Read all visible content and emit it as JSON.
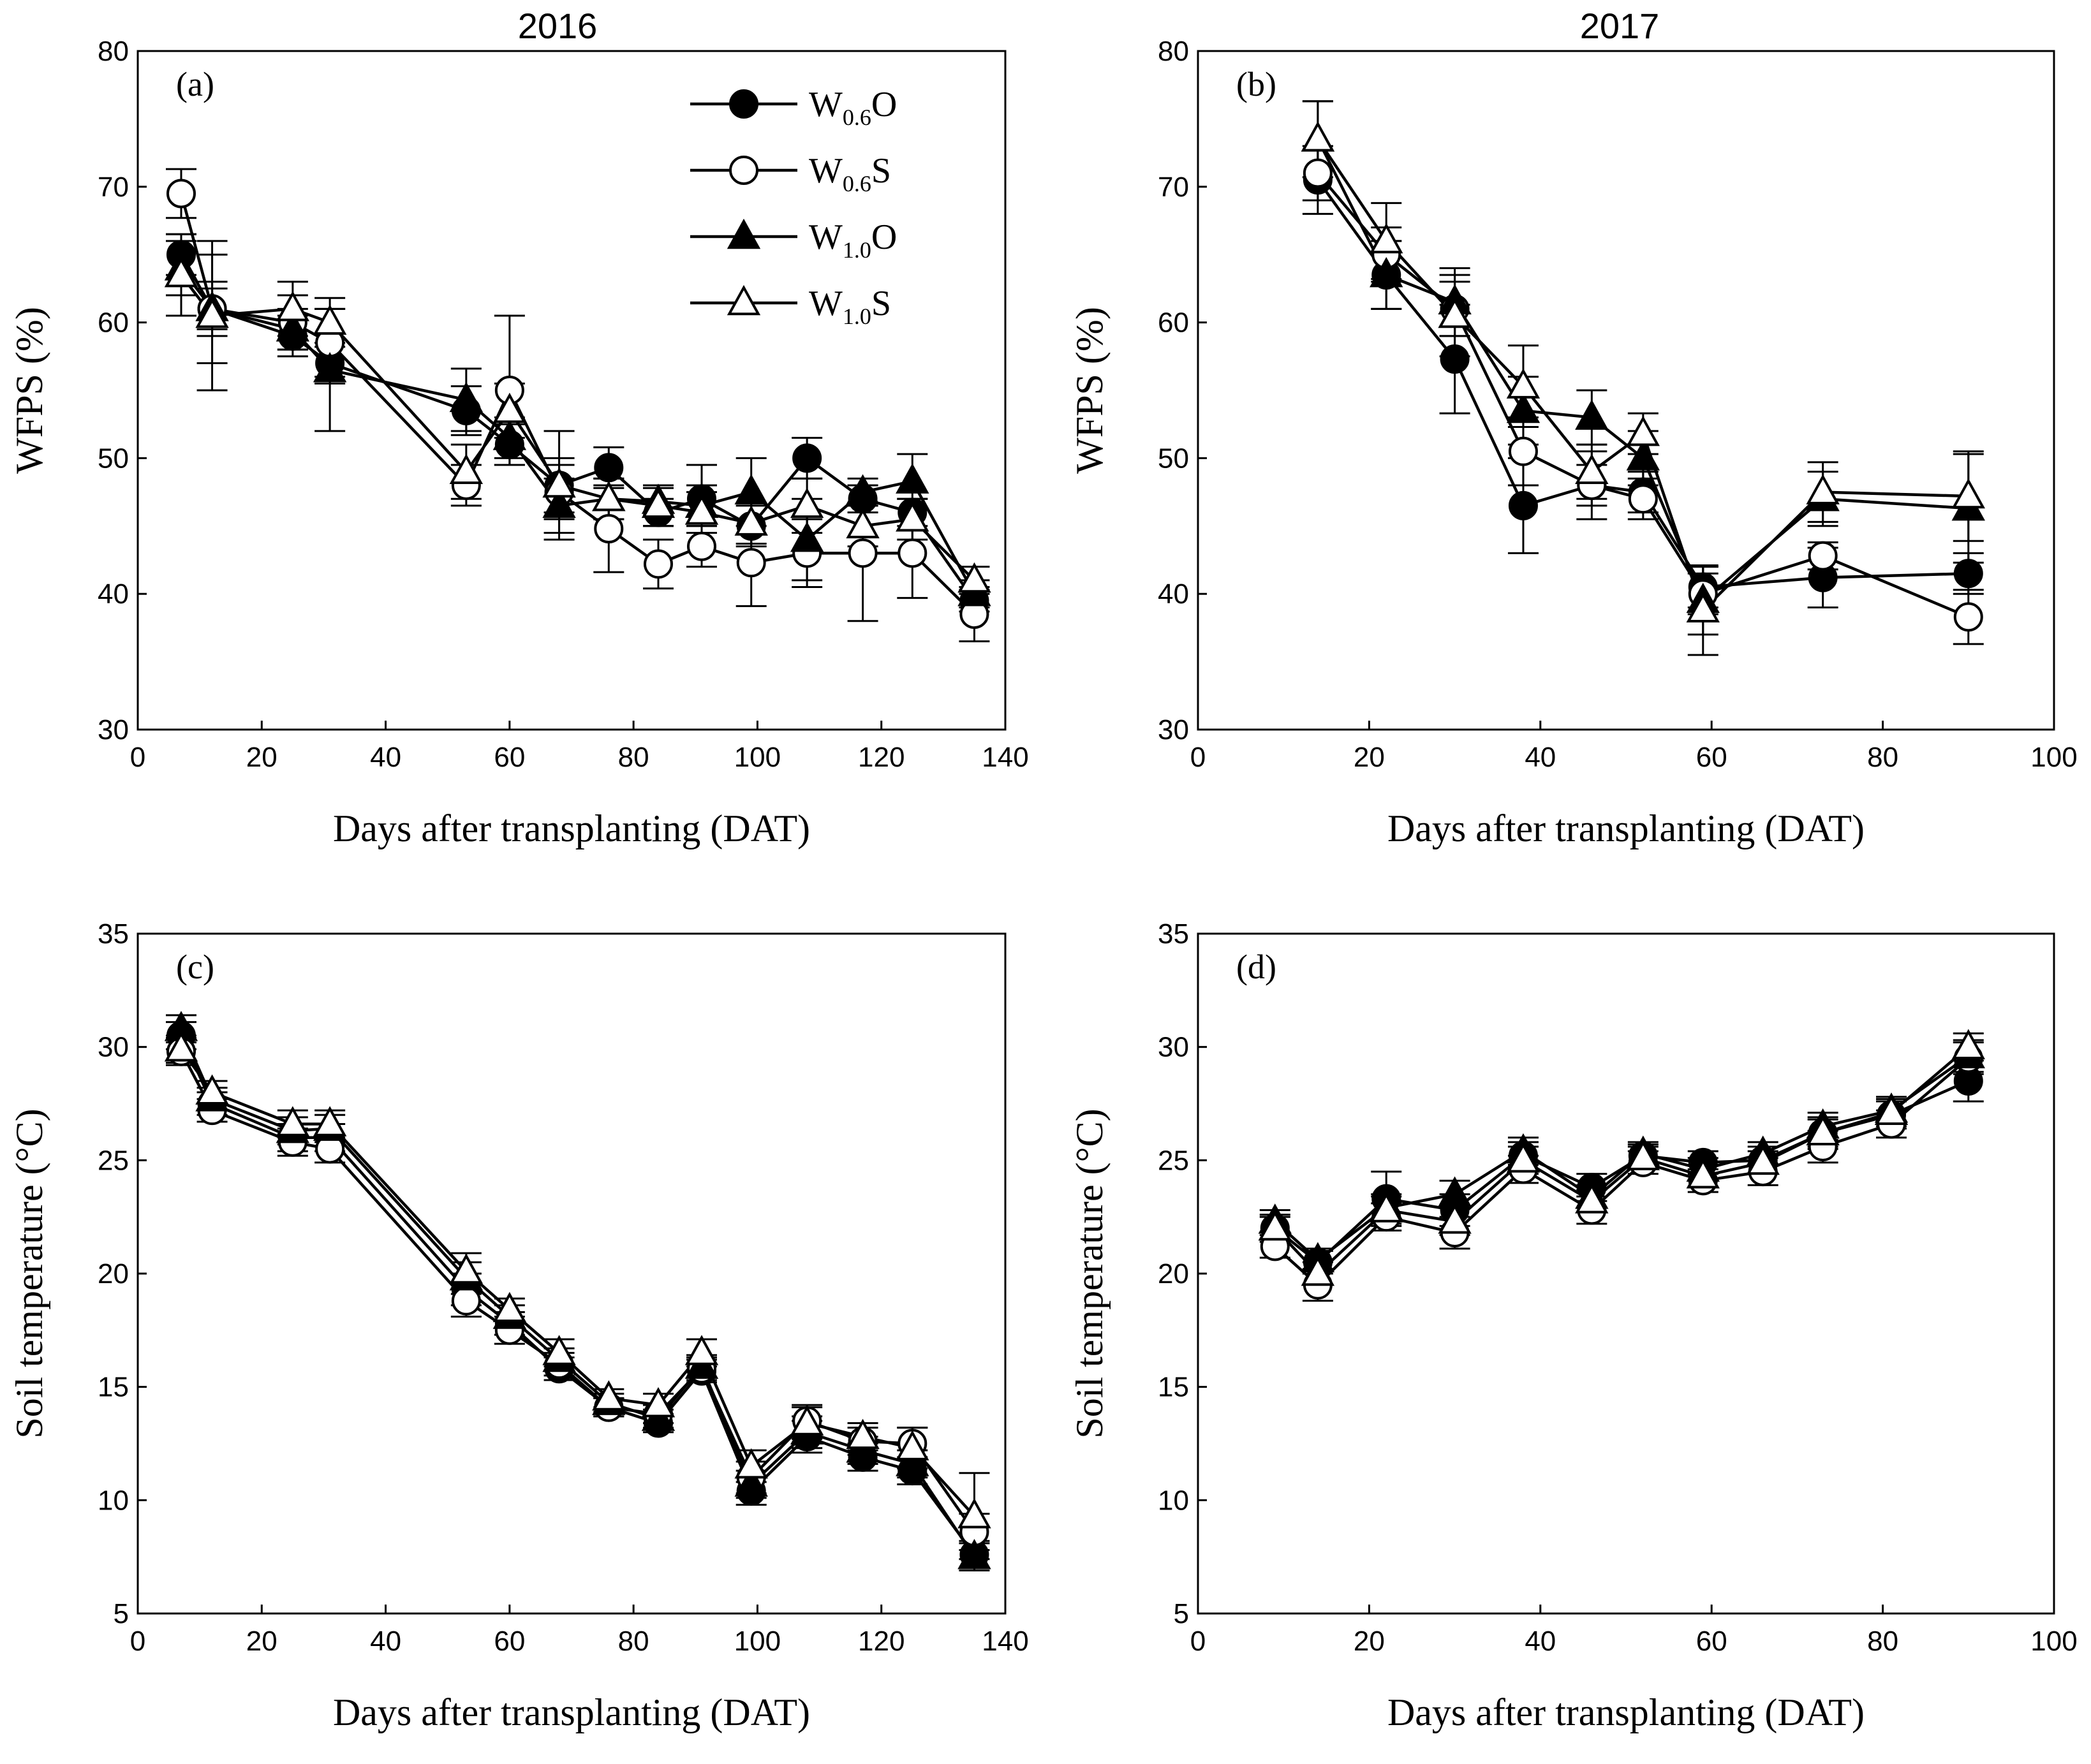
{
  "figure": {
    "year_titles": [
      "2016",
      "2017"
    ]
  },
  "legend": [
    {
      "base": "W",
      "sub": "0.6",
      "suffix": "O",
      "series": "W0.6O",
      "marker": "circle",
      "fill": "#000000"
    },
    {
      "base": "W",
      "sub": "0.6",
      "suffix": "S",
      "series": "W0.6S",
      "marker": "circle",
      "fill": "#ffffff"
    },
    {
      "base": "W",
      "sub": "1.0",
      "suffix": "O",
      "series": "W1.0O",
      "marker": "triangle",
      "fill": "#000000"
    },
    {
      "base": "W",
      "sub": "1.0",
      "suffix": "S",
      "series": "W1.0S",
      "marker": "triangle",
      "fill": "#ffffff"
    }
  ],
  "chart_data": [
    {
      "panel": "(a)",
      "type": "line",
      "title": "2016",
      "xlabel": "Days after transplanting (DAT)",
      "ylabel": "WFPS (%)",
      "xlim": [
        0,
        140
      ],
      "ylim": [
        30,
        80
      ],
      "xticks": [
        0,
        20,
        40,
        60,
        80,
        100,
        120,
        140
      ],
      "yticks": [
        30,
        40,
        50,
        60,
        70,
        80
      ],
      "legend": true,
      "series": [
        {
          "name": "W0.6O",
          "x": [
            7,
            12,
            25,
            31,
            53,
            60,
            68,
            76,
            84,
            91,
            99,
            108,
            117,
            125,
            135
          ],
          "y": [
            65,
            61,
            59,
            57,
            53.5,
            51,
            48,
            49.3,
            46,
            47,
            45,
            50,
            47,
            46,
            39.5
          ],
          "err": [
            1.5,
            4,
            1.5,
            1.5,
            1.8,
            1.5,
            2,
            1.5,
            1,
            2.5,
            1.5,
            1.5,
            1,
            1,
            0.8
          ]
        },
        {
          "name": "W0.6S",
          "x": [
            7,
            12,
            25,
            31,
            53,
            60,
            68,
            76,
            84,
            91,
            99,
            108,
            117,
            125,
            135
          ],
          "y": [
            69.5,
            61,
            60,
            58.5,
            48,
            55,
            47.5,
            44.8,
            42.2,
            43.5,
            42.3,
            43,
            43,
            43,
            38.5
          ],
          "err": [
            1.8,
            2,
            2,
            2.5,
            1.5,
            5.5,
            2,
            3.2,
            1.8,
            1.5,
            3.2,
            2.5,
            5,
            3.3,
            2
          ]
        },
        {
          "name": "W1.0O",
          "x": [
            7,
            12,
            25,
            31,
            53,
            60,
            68,
            76,
            84,
            91,
            99,
            108,
            117,
            125,
            135
          ],
          "y": [
            64,
            61,
            59.5,
            56.5,
            54.3,
            51.5,
            46.5,
            47,
            46.8,
            46.5,
            47.5,
            44,
            47.5,
            48.3,
            40
          ],
          "err": [
            2,
            1.5,
            1.5,
            4.5,
            2.3,
            1.5,
            2,
            1.5,
            1,
            1.5,
            2.5,
            3,
            1,
            2,
            1
          ]
        },
        {
          "name": "W1.0S",
          "x": [
            7,
            12,
            25,
            31,
            53,
            60,
            68,
            76,
            84,
            91,
            99,
            108,
            117,
            125,
            135
          ],
          "y": [
            63.5,
            60.5,
            61,
            60,
            49,
            53.5,
            48,
            47,
            46.5,
            46,
            45.2,
            46.5,
            45,
            45.5,
            41
          ],
          "err": [
            3,
            5.5,
            2,
            1.8,
            2,
            2,
            4,
            1.5,
            1.5,
            1.5,
            1.5,
            2,
            1.5,
            1.5,
            1
          ]
        }
      ]
    },
    {
      "panel": "(b)",
      "type": "line",
      "title": "2017",
      "xlabel": "Days after transplanting (DAT)",
      "ylabel": "WFPS (%)",
      "xlim": [
        0,
        100
      ],
      "ylim": [
        30,
        80
      ],
      "xticks": [
        0,
        20,
        40,
        60,
        80,
        100
      ],
      "yticks": [
        30,
        40,
        50,
        60,
        70,
        80
      ],
      "legend": false,
      "series": [
        {
          "name": "W0.6O",
          "x": [
            14,
            22,
            30,
            38,
            46,
            52,
            59,
            73,
            90
          ],
          "y": [
            70.5,
            63.5,
            57.3,
            46.5,
            48,
            47.5,
            40.5,
            41.2,
            41.5
          ],
          "err": [
            2.5,
            2.5,
            4,
            3.5,
            1.5,
            1.5,
            1.5,
            2.2,
            1.5
          ]
        },
        {
          "name": "W0.6S",
          "x": [
            14,
            22,
            30,
            38,
            46,
            52,
            59,
            73,
            90
          ],
          "y": [
            71,
            65,
            61,
            50.5,
            48,
            47,
            40,
            42.8,
            38.3
          ],
          "err": [
            2,
            2,
            2,
            2.5,
            2.5,
            1.5,
            1.5,
            1,
            2
          ]
        },
        {
          "name": "W1.0O",
          "x": [
            14,
            22,
            30,
            38,
            46,
            52,
            59,
            73,
            90
          ],
          "y": [
            73.5,
            63.5,
            61.5,
            53.5,
            53,
            50,
            39.5,
            47,
            46.3
          ],
          "err": [
            2.8,
            2.5,
            2.5,
            2.5,
            2,
            2,
            2.5,
            2,
            4
          ]
        },
        {
          "name": "W1.0S",
          "x": [
            14,
            22,
            30,
            38,
            46,
            52,
            59,
            73,
            90
          ],
          "y": [
            73.5,
            66,
            60.5,
            55.3,
            49,
            51.8,
            38.8,
            47.5,
            47.2
          ],
          "err": [
            2.8,
            2.8,
            3,
            3,
            2,
            1.5,
            3.3,
            2.2,
            3.3
          ]
        }
      ]
    },
    {
      "panel": "(c)",
      "type": "line",
      "title": "",
      "xlabel": "Days after transplanting (DAT)",
      "ylabel": "Soil temperature (°C)",
      "xlim": [
        0,
        140
      ],
      "ylim": [
        5,
        35
      ],
      "xticks": [
        0,
        20,
        40,
        60,
        80,
        100,
        120,
        140
      ],
      "yticks": [
        5,
        10,
        15,
        20,
        25,
        30,
        35
      ],
      "legend": false,
      "series": [
        {
          "name": "W0.6O",
          "x": [
            7,
            12,
            25,
            31,
            53,
            60,
            68,
            76,
            84,
            91,
            99,
            108,
            117,
            125,
            135
          ],
          "y": [
            30.5,
            27.5,
            26,
            26,
            19.3,
            17.8,
            15.8,
            14.1,
            13.4,
            15.7,
            10.4,
            12.8,
            11.9,
            11.3,
            7.6
          ],
          "err": [
            0.6,
            0.5,
            0.6,
            0.6,
            0.7,
            0.5,
            0.5,
            0.4,
            0.4,
            0.5,
            0.6,
            0.7,
            0.6,
            0.6,
            0.6
          ]
        },
        {
          "name": "W0.6S",
          "x": [
            7,
            12,
            25,
            31,
            53,
            60,
            68,
            76,
            84,
            91,
            99,
            108,
            117,
            125,
            135
          ],
          "y": [
            29.8,
            27.2,
            25.8,
            25.5,
            18.8,
            17.5,
            16,
            14.1,
            13.8,
            15.8,
            11,
            13.5,
            12.6,
            12.5,
            8.6
          ],
          "err": [
            0.6,
            0.5,
            0.6,
            0.6,
            0.7,
            0.6,
            0.5,
            0.4,
            0.4,
            0.5,
            0.7,
            0.7,
            0.6,
            0.7,
            0.8
          ]
        },
        {
          "name": "W1.0O",
          "x": [
            7,
            12,
            25,
            31,
            53,
            60,
            68,
            76,
            84,
            91,
            99,
            108,
            117,
            125,
            135
          ],
          "y": [
            30.8,
            27.7,
            26.3,
            26.4,
            19.8,
            18.1,
            16.2,
            14.3,
            13.6,
            15.9,
            10.7,
            13,
            12.2,
            11.6,
            7.5
          ],
          "err": [
            0.6,
            0.5,
            0.6,
            0.6,
            0.7,
            0.5,
            0.5,
            0.4,
            0.4,
            0.5,
            0.6,
            0.7,
            0.6,
            0.6,
            0.6
          ]
        },
        {
          "name": "W1.0S",
          "x": [
            7,
            12,
            25,
            31,
            53,
            60,
            68,
            76,
            84,
            91,
            99,
            108,
            117,
            125,
            135
          ],
          "y": [
            29.9,
            28,
            26.6,
            26.6,
            20.1,
            18.4,
            16.5,
            14.5,
            14.2,
            16.5,
            11.5,
            13.4,
            12.8,
            12.3,
            9.3
          ],
          "err": [
            0.6,
            0.5,
            0.6,
            0.6,
            0.8,
            0.5,
            0.6,
            0.4,
            0.5,
            0.6,
            0.7,
            0.7,
            0.6,
            0.9,
            1.9
          ]
        }
      ]
    },
    {
      "panel": "(d)",
      "type": "line",
      "title": "",
      "xlabel": "Days after transplanting (DAT)",
      "ylabel": "Soil temperature (°C)",
      "xlim": [
        0,
        100
      ],
      "ylim": [
        5,
        35
      ],
      "xticks": [
        0,
        20,
        40,
        60,
        80,
        100
      ],
      "yticks": [
        5,
        10,
        15,
        20,
        25,
        30,
        35
      ],
      "legend": false,
      "series": [
        {
          "name": "W0.6O",
          "x": [
            9,
            14,
            22,
            30,
            38,
            46,
            52,
            59,
            66,
            73,
            81,
            90
          ],
          "y": [
            22,
            20.5,
            23.3,
            22.8,
            25.2,
            23.8,
            25.2,
            24.9,
            25,
            26.2,
            27,
            28.5
          ],
          "err": [
            0.6,
            0.5,
            1.2,
            0.7,
            0.6,
            0.6,
            0.5,
            0.5,
            0.6,
            0.7,
            0.6,
            0.9
          ]
        },
        {
          "name": "W0.6S",
          "x": [
            9,
            14,
            22,
            30,
            38,
            46,
            52,
            59,
            66,
            73,
            81,
            90
          ],
          "y": [
            21.2,
            19.5,
            22.5,
            21.8,
            24.6,
            22.8,
            24.9,
            24.1,
            24.5,
            25.6,
            26.6,
            29.5
          ],
          "err": [
            0.5,
            0.7,
            0.6,
            0.7,
            0.6,
            0.6,
            0.5,
            0.5,
            0.6,
            0.7,
            0.6,
            0.7
          ]
        },
        {
          "name": "W1.0O",
          "x": [
            9,
            14,
            22,
            30,
            38,
            46,
            52,
            59,
            66,
            73,
            81,
            90
          ],
          "y": [
            22.3,
            20.6,
            22.9,
            23.5,
            25.4,
            23.4,
            25.3,
            24.6,
            25.3,
            26.5,
            27.2,
            29.6
          ],
          "err": [
            0.5,
            0.5,
            0.6,
            0.6,
            0.6,
            0.5,
            0.5,
            0.5,
            0.5,
            0.6,
            0.6,
            0.7
          ]
        },
        {
          "name": "W1.0S",
          "x": [
            9,
            14,
            22,
            30,
            38,
            46,
            52,
            59,
            66,
            73,
            81,
            90
          ],
          "y": [
            22,
            20,
            22.8,
            22.3,
            25,
            23.2,
            25.1,
            24.3,
            24.9,
            26.2,
            27.1,
            30
          ],
          "err": [
            0.5,
            0.5,
            0.6,
            0.6,
            0.6,
            0.5,
            0.5,
            0.5,
            0.5,
            0.6,
            0.6,
            0.6
          ]
        }
      ]
    }
  ]
}
